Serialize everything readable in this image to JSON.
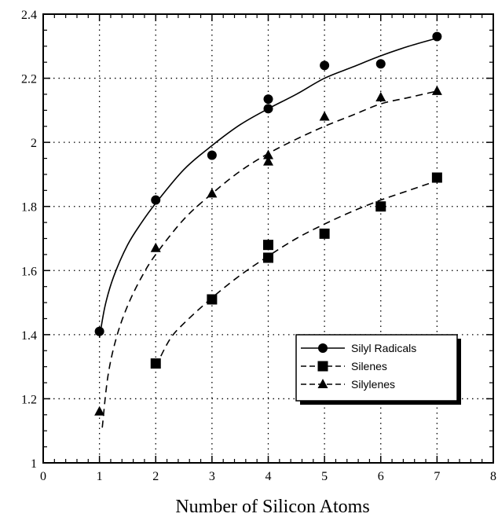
{
  "chart_data": {
    "type": "scatter",
    "title": "",
    "xlabel": "Number of Silicon Atoms",
    "ylabel": "",
    "xlim": [
      0,
      8
    ],
    "ylim": [
      1,
      2.4
    ],
    "x_ticks": [
      "0",
      "1",
      "2",
      "3",
      "4",
      "5",
      "6",
      "7",
      "8"
    ],
    "y_ticks": [
      "1",
      "1.2",
      "1.4",
      "1.6",
      "1.8",
      "2",
      "2.2",
      "2.4"
    ],
    "grid": true,
    "legend_position": "bottom-right",
    "series": [
      {
        "name": "Silyl Radicals",
        "marker": "circle",
        "line": "solid",
        "points": [
          [
            1,
            1.41
          ],
          [
            2,
            1.82
          ],
          [
            3,
            1.96
          ],
          [
            4,
            2.105
          ],
          [
            4,
            2.135
          ],
          [
            5,
            2.24
          ],
          [
            6,
            2.245
          ],
          [
            7,
            2.33
          ]
        ],
        "fit": [
          [
            1,
            1.39
          ],
          [
            1.1,
            1.49
          ],
          [
            1.25,
            1.58
          ],
          [
            1.5,
            1.68
          ],
          [
            1.75,
            1.75
          ],
          [
            2,
            1.81
          ],
          [
            2.5,
            1.915
          ],
          [
            3,
            1.99
          ],
          [
            3.5,
            2.055
          ],
          [
            4,
            2.105
          ],
          [
            4.5,
            2.15
          ],
          [
            5,
            2.2
          ],
          [
            5.5,
            2.235
          ],
          [
            6,
            2.27
          ],
          [
            6.5,
            2.3
          ],
          [
            7,
            2.325
          ]
        ]
      },
      {
        "name": "Silenes",
        "marker": "square",
        "line": "dashed",
        "points": [
          [
            2,
            1.31
          ],
          [
            3,
            1.51
          ],
          [
            4,
            1.64
          ],
          [
            4,
            1.68
          ],
          [
            5,
            1.715
          ],
          [
            6,
            1.8
          ],
          [
            7,
            1.89
          ]
        ],
        "fit": [
          [
            2,
            1.3
          ],
          [
            2.25,
            1.385
          ],
          [
            2.5,
            1.435
          ],
          [
            3,
            1.515
          ],
          [
            3.5,
            1.585
          ],
          [
            4,
            1.645
          ],
          [
            4.5,
            1.7
          ],
          [
            5,
            1.745
          ],
          [
            5.5,
            1.785
          ],
          [
            6,
            1.82
          ],
          [
            6.5,
            1.85
          ],
          [
            7,
            1.88
          ]
        ]
      },
      {
        "name": "Silylenes",
        "marker": "triangle",
        "line": "dashed",
        "points": [
          [
            1,
            1.16
          ],
          [
            2,
            1.67
          ],
          [
            3,
            1.84
          ],
          [
            4,
            1.94
          ],
          [
            4,
            1.96
          ],
          [
            5,
            2.08
          ],
          [
            6,
            2.14
          ],
          [
            7,
            2.16
          ]
        ],
        "fit": [
          [
            1.05,
            1.11
          ],
          [
            1.15,
            1.27
          ],
          [
            1.3,
            1.39
          ],
          [
            1.5,
            1.49
          ],
          [
            1.75,
            1.58
          ],
          [
            2,
            1.65
          ],
          [
            2.5,
            1.76
          ],
          [
            3,
            1.84
          ],
          [
            3.5,
            1.91
          ],
          [
            4,
            1.965
          ],
          [
            4.5,
            2.01
          ],
          [
            5,
            2.05
          ],
          [
            5.5,
            2.085
          ],
          [
            6,
            2.12
          ],
          [
            6.5,
            2.14
          ],
          [
            7,
            2.16
          ]
        ]
      }
    ]
  }
}
